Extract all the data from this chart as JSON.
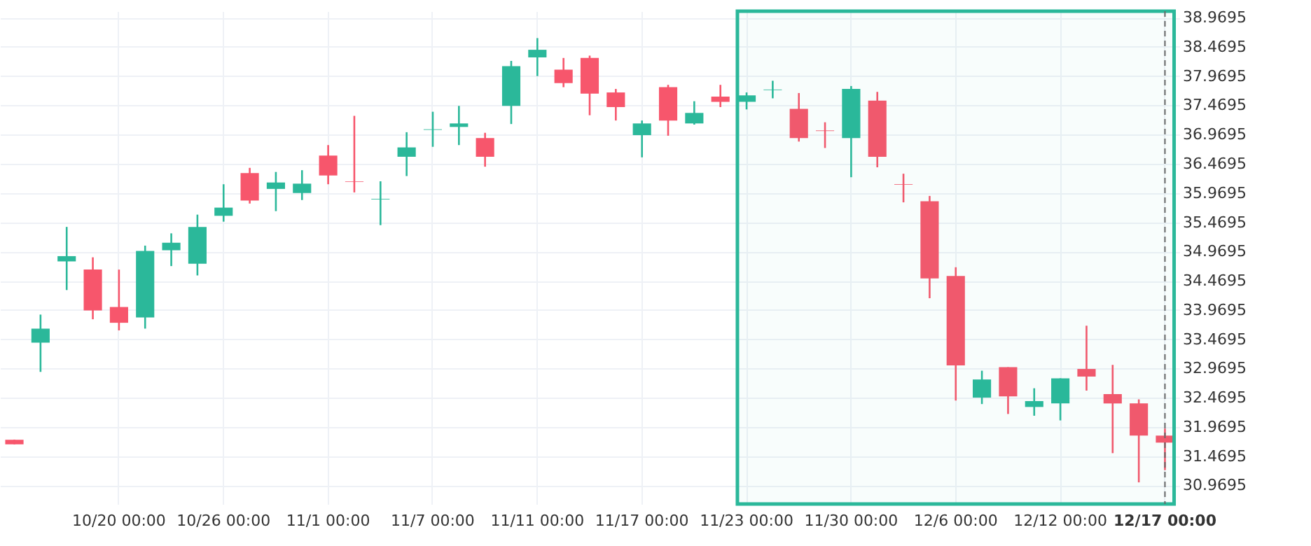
{
  "chart_data": {
    "type": "candlestick",
    "categories": [
      null,
      null,
      null,
      null,
      "10/20 00:00",
      null,
      null,
      null,
      "10/26 00:00",
      null,
      null,
      null,
      "11/1 00:00",
      null,
      null,
      null,
      "11/7 00:00",
      null,
      null,
      null,
      "11/11 00:00",
      null,
      null,
      null,
      "11/17 00:00",
      null,
      null,
      null,
      "11/23 00:00",
      null,
      null,
      null,
      "11/30 00:00",
      null,
      null,
      null,
      "12/6 00:00",
      null,
      null,
      null,
      "12/12 00:00",
      null,
      null,
      null,
      "12/17 00:00"
    ],
    "ohlc": [
      [
        31.75,
        31.75,
        31.67,
        31.67
      ],
      [
        33.41,
        33.89,
        32.91,
        33.65
      ],
      [
        34.8,
        35.39,
        34.31,
        34.89
      ],
      [
        34.66,
        34.87,
        33.81,
        33.96
      ],
      [
        34.02,
        34.66,
        33.62,
        33.75
      ],
      [
        33.84,
        35.07,
        33.65,
        34.98
      ],
      [
        34.99,
        35.28,
        34.72,
        35.12
      ],
      [
        34.76,
        35.6,
        34.56,
        35.39
      ],
      [
        35.58,
        36.12,
        35.48,
        35.72
      ],
      [
        36.31,
        36.4,
        35.79,
        35.84
      ],
      [
        36.04,
        36.33,
        35.66,
        36.15
      ],
      [
        35.97,
        36.36,
        35.85,
        36.13
      ],
      [
        36.61,
        36.79,
        36.12,
        36.27
      ],
      [
        36.17,
        37.29,
        35.98,
        36.16
      ],
      [
        35.86,
        36.17,
        35.42,
        35.87
      ],
      [
        36.59,
        37.01,
        36.26,
        36.75
      ],
      [
        37.05,
        37.36,
        36.76,
        37.06
      ],
      [
        37.1,
        37.46,
        36.79,
        37.16
      ],
      [
        36.91,
        37.0,
        36.42,
        36.59
      ],
      [
        37.46,
        38.23,
        37.15,
        38.14
      ],
      [
        38.29,
        38.62,
        37.97,
        38.42
      ],
      [
        38.08,
        38.28,
        37.78,
        37.85
      ],
      [
        38.28,
        38.32,
        37.3,
        37.67
      ],
      [
        37.69,
        37.75,
        37.21,
        37.44
      ],
      [
        36.96,
        37.21,
        36.58,
        37.16
      ],
      [
        37.78,
        37.82,
        36.95,
        37.21
      ],
      [
        37.16,
        37.54,
        37.14,
        37.34
      ],
      [
        37.62,
        37.82,
        37.44,
        37.53
      ],
      [
        37.53,
        37.69,
        37.4,
        37.64
      ],
      [
        37.73,
        37.89,
        37.59,
        37.74
      ],
      [
        37.41,
        37.68,
        36.85,
        36.91
      ],
      [
        37.04,
        37.18,
        36.74,
        37.03
      ],
      [
        36.91,
        37.8,
        36.24,
        37.75
      ],
      [
        37.55,
        37.7,
        36.41,
        36.59
      ],
      [
        36.12,
        36.3,
        35.81,
        36.11
      ],
      [
        35.83,
        35.92,
        34.17,
        34.51
      ],
      [
        34.55,
        34.7,
        32.42,
        33.02
      ],
      [
        32.47,
        32.93,
        32.36,
        32.78
      ],
      [
        32.99,
        32.99,
        32.19,
        32.49
      ],
      [
        32.31,
        32.63,
        32.16,
        32.41
      ],
      [
        32.37,
        32.8,
        32.08,
        32.8
      ],
      [
        32.96,
        33.7,
        32.59,
        32.83
      ],
      [
        32.53,
        33.03,
        31.52,
        32.37
      ],
      [
        32.37,
        32.44,
        31.02,
        31.82
      ],
      [
        31.82,
        31.94,
        31.23,
        31.7
      ]
    ],
    "colors": [
      "#f7566c",
      "#2bb89a",
      "#2bb89a",
      "#f7566c",
      "#f7566c",
      "#2bb89a",
      "#2bb89a",
      "#2bb89a",
      "#2bb89a",
      "#f7566c",
      "#2bb89a",
      "#2bb89a",
      "#f7566c",
      "#f7566c",
      "#2bb89a",
      "#2bb89a",
      "#2bb89a",
      "#2bb89a",
      "#f7566c",
      "#2bb89a",
      "#2bb89a",
      "#f7566c",
      "#f7566c",
      "#f7566c",
      "#2bb89a",
      "#f7566c",
      "#2bb89a",
      "#f7566c",
      "#2bb89a",
      "#2bb89a",
      "#f7566c",
      "#f7566c",
      "#2bb89a",
      "#f7566c",
      "#f7566c",
      "#f7566c",
      "#f7566c",
      "#2bb89a",
      "#f7566c",
      "#2bb89a",
      "#2bb89a",
      "#f7566c",
      "#f7566c",
      "#f7566c",
      "#f7566c"
    ],
    "ylim": [
      30.65,
      39.08
    ],
    "yticks": [
      30.9695,
      31.4695,
      31.9695,
      32.4695,
      32.9695,
      33.4695,
      33.9695,
      34.4695,
      34.9695,
      35.4695,
      35.9695,
      36.4695,
      36.9695,
      37.4695,
      37.9695,
      38.4695,
      38.9695
    ],
    "grid": true,
    "ref_lines": [
      {
        "axis": "x",
        "value": "12/17 00:00",
        "color": "#666666",
        "line_style": "dashed"
      }
    ],
    "bands": [
      {
        "axis": "x",
        "from": "11/23 00:00",
        "to": "12/17 00:00",
        "color": "#2bb89a"
      }
    ]
  }
}
